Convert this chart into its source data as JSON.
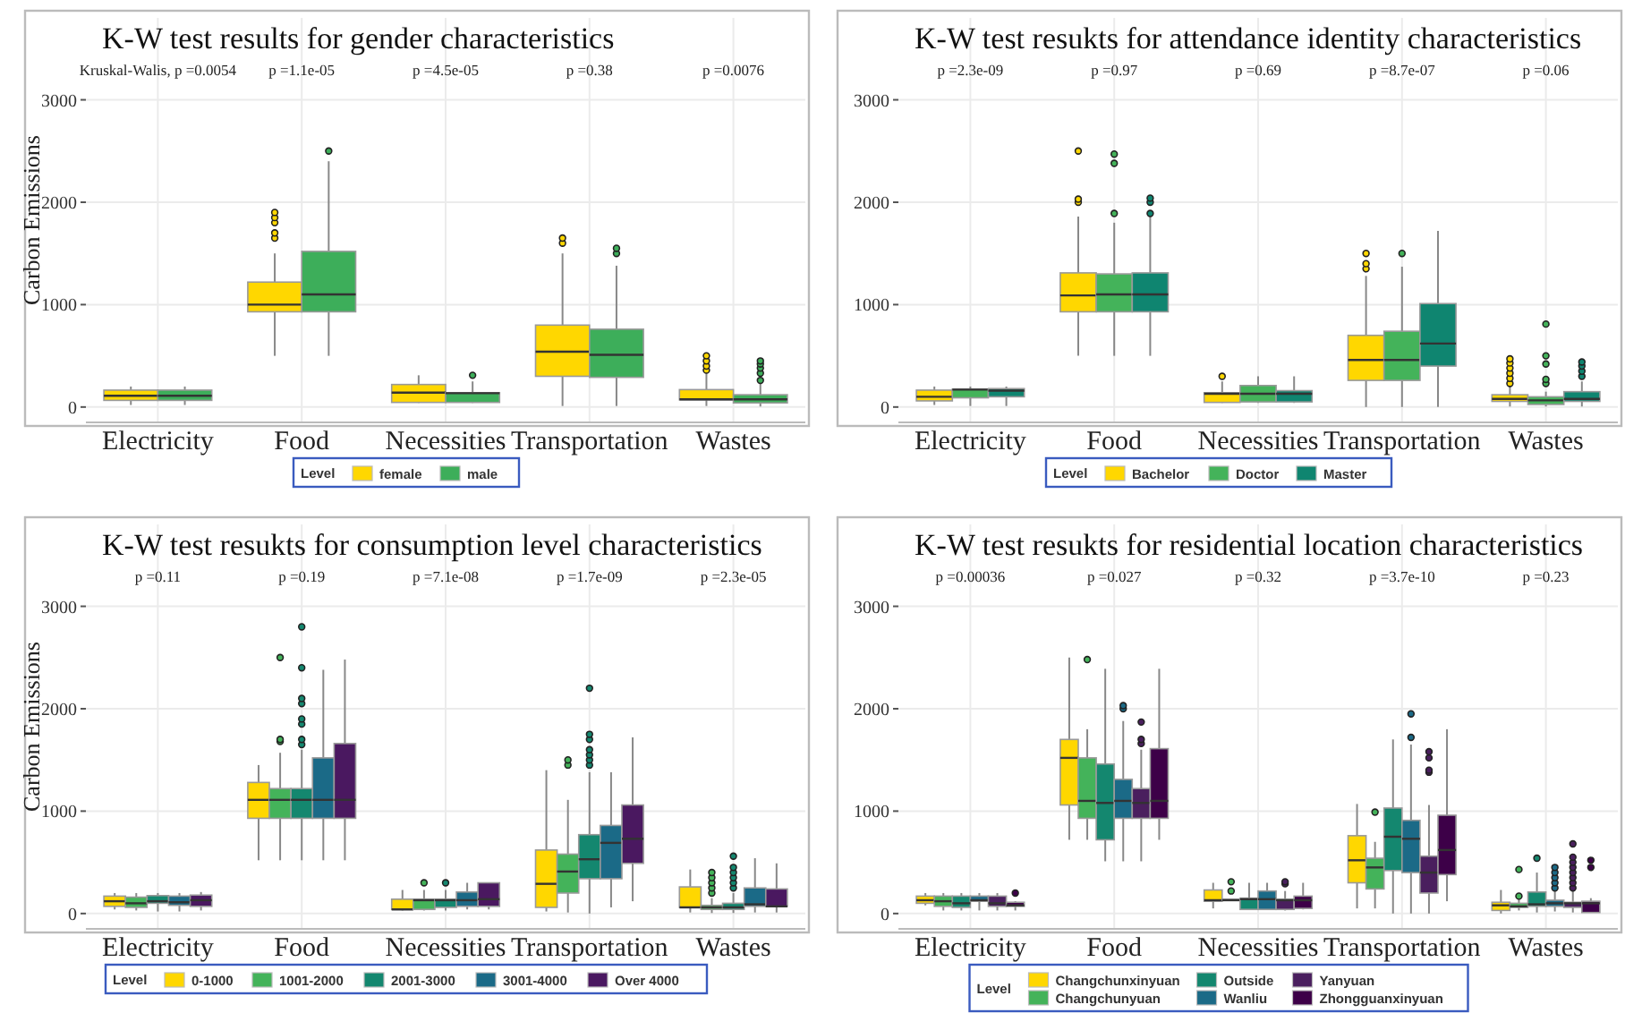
{
  "chart_data": [
    {
      "type": "box",
      "title": "K-W test results for gender characteristics",
      "ylabel": "Carbon Emissions",
      "categories": [
        "Electricity",
        "Food",
        "Necessities",
        "Transportation",
        "Wastes"
      ],
      "ylim": [
        -150,
        3800
      ],
      "yticks": [
        0,
        1000,
        2000,
        3000
      ],
      "grid": true,
      "legend": "bottom",
      "legend_title": "Level",
      "annotations": [
        "Kruskal-Walis, p =0.0054",
        "p =1.1e-05",
        "p =4.5e-05",
        "p =0.38",
        "p =0.0076"
      ],
      "series": [
        {
          "name": "female",
          "color": "#ffd700",
          "boxes": [
            {
              "low": 20,
              "q1": 65,
              "median": 110,
              "q3": 165,
              "high": 200
            },
            {
              "low": 500,
              "q1": 930,
              "median": 1000,
              "q3": 1220,
              "high": 1500,
              "outliers": [
                1650,
                1700,
                1800,
                1850,
                1900
              ]
            },
            {
              "low": 40,
              "q1": 45,
              "median": 140,
              "q3": 220,
              "high": 310
            },
            {
              "low": 10,
              "q1": 300,
              "median": 540,
              "q3": 800,
              "high": 1500,
              "outliers": [
                1600,
                1650
              ]
            },
            {
              "low": 10,
              "q1": 70,
              "median": 75,
              "q3": 170,
              "high": 330,
              "outliers": [
                360,
                400,
                450,
                500
              ]
            }
          ]
        },
        {
          "name": "male",
          "color": "#3dae5a",
          "boxes": [
            {
              "low": 20,
              "q1": 65,
              "median": 110,
              "q3": 165,
              "high": 200
            },
            {
              "low": 500,
              "q1": 930,
              "median": 1100,
              "q3": 1520,
              "high": 2400,
              "outliers": [
                2500
              ]
            },
            {
              "low": 40,
              "q1": 45,
              "median": 135,
              "q3": 140,
              "high": 250,
              "outliers": [
                310
              ]
            },
            {
              "low": 10,
              "q1": 290,
              "median": 510,
              "q3": 760,
              "high": 1380,
              "outliers": [
                1500,
                1550
              ]
            },
            {
              "low": 5,
              "q1": 40,
              "median": 75,
              "q3": 120,
              "high": 230,
              "outliers": [
                260,
                330,
                380,
                420,
                450
              ]
            }
          ]
        }
      ]
    },
    {
      "type": "box",
      "title": "K-W test resukts for attendance identity characteristics",
      "categories": [
        "Electricity",
        "Food",
        "Necessities",
        "Transportation",
        "Wastes"
      ],
      "ylim": [
        -150,
        3800
      ],
      "yticks": [
        0,
        1000,
        2000,
        3000
      ],
      "grid": true,
      "legend": "bottom",
      "legend_title": "Level",
      "annotations": [
        "p =2.3e-09",
        "p =0.97",
        "p =0.69",
        "p =8.7e-07",
        "p =0.06"
      ],
      "series": [
        {
          "name": "Bachelor",
          "color": "#ffd700",
          "boxes": [
            {
              "low": 20,
              "q1": 60,
              "median": 100,
              "q3": 165,
              "high": 200
            },
            {
              "low": 500,
              "q1": 930,
              "median": 1090,
              "q3": 1310,
              "high": 1860,
              "outliers": [
                2000,
                2030,
                2500
              ]
            },
            {
              "low": 40,
              "q1": 45,
              "median": 130,
              "q3": 140,
              "high": 250,
              "outliers": [
                300
              ]
            },
            {
              "low": 0,
              "q1": 260,
              "median": 460,
              "q3": 700,
              "high": 1280,
              "outliers": [
                1350,
                1400,
                1500
              ]
            },
            {
              "low": 5,
              "q1": 55,
              "median": 80,
              "q3": 120,
              "high": 200,
              "outliers": [
                230,
                280,
                330,
                380,
                430,
                470
              ]
            }
          ]
        },
        {
          "name": "Doctor",
          "color": "#44b35a",
          "boxes": [
            {
              "low": 10,
              "q1": 90,
              "median": 170,
              "q3": 175,
              "high": 200
            },
            {
              "low": 500,
              "q1": 930,
              "median": 1100,
              "q3": 1300,
              "high": 1800,
              "outliers": [
                1890,
                2380,
                2470
              ]
            },
            {
              "low": 40,
              "q1": 50,
              "median": 130,
              "q3": 210,
              "high": 300
            },
            {
              "low": 0,
              "q1": 260,
              "median": 460,
              "q3": 740,
              "high": 1370,
              "outliers": [
                1500
              ]
            },
            {
              "low": 5,
              "q1": 25,
              "median": 65,
              "q3": 100,
              "high": 150,
              "outliers": [
                230,
                270,
                420,
                500,
                810
              ]
            }
          ]
        },
        {
          "name": "Master",
          "color": "#0f8570",
          "boxes": [
            {
              "low": 10,
              "q1": 100,
              "median": 160,
              "q3": 180,
              "high": 200
            },
            {
              "low": 500,
              "q1": 930,
              "median": 1100,
              "q3": 1310,
              "high": 1860,
              "outliers": [
                1890,
                2000,
                2040
              ]
            },
            {
              "low": 40,
              "q1": 50,
              "median": 130,
              "q3": 160,
              "high": 300
            },
            {
              "low": 0,
              "q1": 400,
              "median": 620,
              "q3": 1010,
              "high": 1720
            },
            {
              "low": 5,
              "q1": 55,
              "median": 80,
              "q3": 150,
              "high": 250,
              "outliers": [
                300,
                350,
                400,
                440
              ]
            }
          ]
        }
      ]
    },
    {
      "type": "box",
      "title": "K-W test resukts for consumption level characteristics",
      "ylabel": "Carbon Emissions",
      "categories": [
        "Electricity",
        "Food",
        "Necessities",
        "Transportation",
        "Wastes"
      ],
      "ylim": [
        -150,
        3800
      ],
      "yticks": [
        0,
        1000,
        2000,
        3000
      ],
      "grid": true,
      "legend": "bottom",
      "legend_title": "Level",
      "annotations": [
        "p =0.11",
        "p =0.19",
        "p =7.1e-08",
        "p =1.7e-09",
        "p =2.3e-05"
      ],
      "series": [
        {
          "name": "0-1000",
          "color": "#ffd700",
          "boxes": [
            {
              "low": 40,
              "q1": 70,
              "median": 120,
              "q3": 170,
              "high": 200
            },
            {
              "low": 520,
              "q1": 930,
              "median": 1110,
              "q3": 1280,
              "high": 1450
            },
            {
              "low": 30,
              "q1": 40,
              "median": 40,
              "q3": 140,
              "high": 230
            },
            {
              "low": 20,
              "q1": 60,
              "median": 290,
              "q3": 620,
              "high": 1400
            },
            {
              "low": 10,
              "q1": 60,
              "median": 60,
              "q3": 260,
              "high": 430
            }
          ]
        },
        {
          "name": "1001-2000",
          "color": "#44b35a",
          "boxes": [
            {
              "low": 30,
              "q1": 60,
              "median": 100,
              "q3": 160,
              "high": 200
            },
            {
              "low": 520,
              "q1": 930,
              "median": 1110,
              "q3": 1220,
              "high": 1570,
              "outliers": [
                1680,
                1700,
                2500
              ]
            },
            {
              "low": 30,
              "q1": 40,
              "median": 130,
              "q3": 140,
              "high": 230,
              "outliers": [
                300
              ]
            },
            {
              "low": 10,
              "q1": 200,
              "median": 410,
              "q3": 580,
              "high": 1110,
              "outliers": [
                1450,
                1500
              ]
            },
            {
              "low": 5,
              "q1": 40,
              "median": 60,
              "q3": 80,
              "high": 150,
              "outliers": [
                200,
                250,
                300,
                350,
                400
              ]
            }
          ]
        },
        {
          "name": "2001-3000",
          "color": "#14876f",
          "boxes": [
            {
              "low": 20,
              "q1": 100,
              "median": 120,
              "q3": 175,
              "high": 200
            },
            {
              "low": 520,
              "q1": 930,
              "median": 1110,
              "q3": 1220,
              "high": 1600,
              "outliers": [
                1650,
                1700,
                1850,
                1900,
                2050,
                2100,
                2400,
                2800
              ]
            },
            {
              "low": 30,
              "q1": 60,
              "median": 130,
              "q3": 140,
              "high": 230,
              "outliers": [
                300
              ]
            },
            {
              "low": 0,
              "q1": 340,
              "median": 530,
              "q3": 770,
              "high": 1380,
              "outliers": [
                1450,
                1500,
                1550,
                1600,
                1700,
                1750,
                2200
              ]
            },
            {
              "low": 5,
              "q1": 40,
              "median": 60,
              "q3": 100,
              "high": 200,
              "outliers": [
                250,
                300,
                350,
                400,
                450,
                560
              ]
            }
          ]
        },
        {
          "name": "3001-4000",
          "color": "#1b6a87",
          "boxes": [
            {
              "low": 20,
              "q1": 80,
              "median": 110,
              "q3": 170,
              "high": 200
            },
            {
              "low": 520,
              "q1": 930,
              "median": 1110,
              "q3": 1520,
              "high": 2380
            },
            {
              "low": 40,
              "q1": 70,
              "median": 130,
              "q3": 210,
              "high": 300
            },
            {
              "low": 60,
              "q1": 340,
              "median": 690,
              "q3": 860,
              "high": 1380
            },
            {
              "low": 10,
              "q1": 70,
              "median": 90,
              "q3": 250,
              "high": 540
            }
          ]
        },
        {
          "name": "Over 4000",
          "color": "#4a1860",
          "boxes": [
            {
              "low": 30,
              "q1": 70,
              "median": 130,
              "q3": 180,
              "high": 210
            },
            {
              "low": 520,
              "q1": 930,
              "median": 1110,
              "q3": 1660,
              "high": 2480
            },
            {
              "low": 40,
              "q1": 70,
              "median": 140,
              "q3": 300,
              "high": 300
            },
            {
              "low": 120,
              "q1": 490,
              "median": 730,
              "q3": 1060,
              "high": 1720
            },
            {
              "low": 10,
              "q1": 70,
              "median": 70,
              "q3": 240,
              "high": 490
            }
          ]
        }
      ]
    },
    {
      "type": "box",
      "title": "K-W test resukts for residential location characteristics",
      "categories": [
        "Electricity",
        "Food",
        "Necessities",
        "Transportation",
        "Wastes"
      ],
      "ylim": [
        -150,
        3800
      ],
      "yticks": [
        0,
        1000,
        2000,
        3000
      ],
      "grid": true,
      "legend": "bottom",
      "legend_title": "Level",
      "annotations": [
        "p =0.00036",
        "p =0.027",
        "p =0.32",
        "p =3.7e-10",
        "p =0.23"
      ],
      "series": [
        {
          "name": "Changchunxinyuan",
          "color": "#ffd700",
          "boxes": [
            {
              "low": 80,
              "q1": 100,
              "median": 130,
              "q3": 170,
              "high": 200
            },
            {
              "low": 720,
              "q1": 1060,
              "median": 1520,
              "q3": 1700,
              "high": 2500
            },
            {
              "low": 50,
              "q1": 120,
              "median": 130,
              "q3": 230,
              "high": 300
            },
            {
              "low": 50,
              "q1": 300,
              "median": 520,
              "q3": 760,
              "high": 1070
            },
            {
              "low": 0,
              "q1": 30,
              "median": 80,
              "q3": 110,
              "high": 230
            }
          ]
        },
        {
          "name": "Changchunyuan",
          "color": "#44b35a",
          "boxes": [
            {
              "low": 30,
              "q1": 70,
              "median": 120,
              "q3": 170,
              "high": 200
            },
            {
              "low": 720,
              "q1": 930,
              "median": 1100,
              "q3": 1520,
              "high": 1800,
              "outliers": [
                2480
              ]
            },
            {
              "low": 130,
              "q1": 130,
              "median": 130,
              "q3": 140,
              "high": 140,
              "outliers": [
                220,
                310
              ]
            },
            {
              "low": 50,
              "q1": 240,
              "median": 450,
              "q3": 540,
              "high": 700,
              "outliers": [
                990
              ]
            },
            {
              "low": 30,
              "q1": 60,
              "median": 70,
              "q3": 100,
              "high": 140,
              "outliers": [
                170,
                430
              ]
            }
          ]
        },
        {
          "name": "Outside",
          "color": "#14876f",
          "boxes": [
            {
              "low": 30,
              "q1": 60,
              "median": 100,
              "q3": 170,
              "high": 200
            },
            {
              "low": 510,
              "q1": 720,
              "median": 1080,
              "q3": 1460,
              "high": 2390
            },
            {
              "low": 40,
              "q1": 40,
              "median": 140,
              "q3": 150,
              "high": 300
            },
            {
              "low": 0,
              "q1": 420,
              "median": 750,
              "q3": 1030,
              "high": 1700
            },
            {
              "low": 10,
              "q1": 70,
              "median": 90,
              "q3": 210,
              "high": 400,
              "outliers": [
                540
              ]
            }
          ]
        },
        {
          "name": "Wanliu",
          "color": "#1b6a87",
          "boxes": [
            {
              "low": 30,
              "q1": 120,
              "median": 130,
              "q3": 170,
              "high": 200
            },
            {
              "low": 510,
              "q1": 930,
              "median": 1100,
              "q3": 1310,
              "high": 1880,
              "outliers": [
                2000,
                2030
              ]
            },
            {
              "low": 40,
              "q1": 40,
              "median": 140,
              "q3": 220,
              "high": 300
            },
            {
              "low": 0,
              "q1": 400,
              "median": 730,
              "q3": 910,
              "high": 1650,
              "outliers": [
                1720,
                1950
              ]
            },
            {
              "low": 20,
              "q1": 70,
              "median": 100,
              "q3": 130,
              "high": 220,
              "outliers": [
                250,
                300,
                350,
                400,
                450
              ]
            }
          ]
        },
        {
          "name": "Yanyuan",
          "color": "#4a1f5e",
          "boxes": [
            {
              "low": 30,
              "q1": 70,
              "median": 100,
              "q3": 170,
              "high": 200
            },
            {
              "low": 510,
              "q1": 930,
              "median": 1080,
              "q3": 1220,
              "high": 1600,
              "outliers": [
                1660,
                1700,
                1870
              ]
            },
            {
              "low": 30,
              "q1": 40,
              "median": 130,
              "q3": 140,
              "high": 220,
              "outliers": [
                290,
                310
              ]
            },
            {
              "low": 0,
              "q1": 200,
              "median": 400,
              "q3": 560,
              "high": 1060,
              "outliers": [
                1380,
                1400,
                1520,
                1580
              ]
            },
            {
              "low": 10,
              "q1": 60,
              "median": 100,
              "q3": 110,
              "high": 220,
              "outliers": [
                250,
                300,
                350,
                400,
                450,
                500,
                550,
                680
              ]
            }
          ]
        },
        {
          "name": "Zhongguanxinyuan",
          "color": "#3d0048",
          "boxes": [
            {
              "low": 30,
              "q1": 70,
              "median": 80,
              "q3": 110,
              "high": 120,
              "outliers": [
                200
              ]
            },
            {
              "low": 720,
              "q1": 930,
              "median": 1100,
              "q3": 1610,
              "high": 2390
            },
            {
              "low": 40,
              "q1": 50,
              "median": 130,
              "q3": 170,
              "high": 300
            },
            {
              "low": 120,
              "q1": 380,
              "median": 620,
              "q3": 960,
              "high": 1800
            },
            {
              "low": 10,
              "q1": 10,
              "median": 100,
              "q3": 120,
              "high": 150,
              "outliers": [
                450,
                520
              ]
            }
          ]
        }
      ]
    }
  ]
}
